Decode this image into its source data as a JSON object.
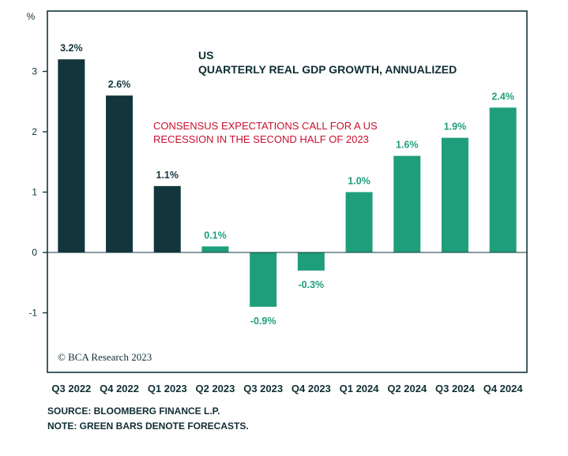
{
  "chart_data": {
    "type": "bar",
    "title": "US",
    "subtitle": "QUARTERLY REAL GDP GROWTH, ANNUALIZED",
    "ylabel": "%",
    "xlabel": "",
    "ylim": [
      -2,
      4
    ],
    "yticks": [
      -1,
      0,
      1,
      2,
      3
    ],
    "categories": [
      "Q3 2022",
      "Q4 2022",
      "Q1 2023",
      "Q2 2023",
      "Q3 2023",
      "Q4 2023",
      "Q1 2024",
      "Q2 2024",
      "Q3 2024",
      "Q4 2024"
    ],
    "values": [
      3.2,
      2.6,
      1.1,
      0.1,
      -0.9,
      -0.3,
      1.0,
      1.6,
      1.9,
      2.4
    ],
    "labels": [
      "3.2%",
      "2.6%",
      "1.1%",
      "0.1%",
      "-0.9%",
      "-0.3%",
      "1.0%",
      "1.6%",
      "1.9%",
      "2.4%"
    ],
    "is_forecast": [
      false,
      false,
      false,
      true,
      true,
      true,
      true,
      true,
      true,
      true
    ],
    "colors": {
      "actual": "#12363c",
      "forecast": "#1f9e7c",
      "annotation": "#c8102e",
      "frame": "#12363c"
    },
    "annotation": [
      "CONSENSUS EXPECTATIONS CALL FOR A US",
      "RECESSION IN THE SECOND HALF OF 2023"
    ],
    "copyright": "© BCA Research 2023",
    "grid": false,
    "legend": "none"
  },
  "footer": {
    "source": "SOURCE: BLOOMBERG FINANCE L.P.",
    "note": "NOTE: GREEN BARS DENOTE FORECASTS."
  }
}
